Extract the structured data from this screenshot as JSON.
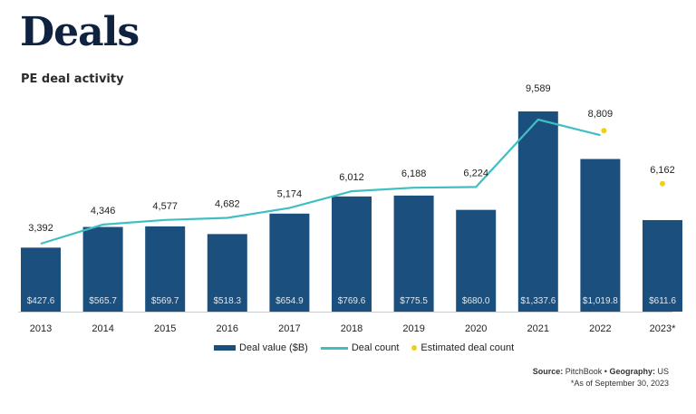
{
  "header": {
    "title": "Deals",
    "subtitle": "PE deal activity"
  },
  "legend": {
    "bar": "Deal value ($B)",
    "line": "Deal count",
    "dot": "Estimated deal count"
  },
  "footer": {
    "source_label": "Source:",
    "source_value": "PitchBook",
    "separator": "•",
    "geo_label": "Geography:",
    "geo_value": "US",
    "note": "*As of September 30, 2023"
  },
  "colors": {
    "bar": "#1b4f7e",
    "line": "#3fbfc4",
    "dot": "#f0cf1c",
    "axis": "#c8cdd3"
  },
  "chart_data": {
    "type": "bar",
    "title": "PE deal activity",
    "xlabel": "",
    "ylabel": "",
    "categories": [
      "2013",
      "2014",
      "2015",
      "2016",
      "2017",
      "2018",
      "2019",
      "2020",
      "2021",
      "2022",
      "2023*"
    ],
    "series": [
      {
        "name": "Deal value ($B)",
        "type": "bar",
        "values": [
          427.6,
          565.7,
          569.7,
          518.3,
          654.9,
          769.6,
          775.5,
          680.0,
          1337.6,
          1019.8,
          611.6
        ],
        "labels": [
          "$427.6",
          "$565.7",
          "$569.7",
          "$518.3",
          "$654.9",
          "$769.6",
          "$775.5",
          "$680.0",
          "$1,337.6",
          "$1,019.8",
          "$611.6"
        ]
      },
      {
        "name": "Deal count",
        "type": "line",
        "values": [
          3392,
          4346,
          4577,
          4682,
          5174,
          6012,
          6188,
          6224,
          9589,
          8809,
          null
        ],
        "labels": [
          "3,392",
          "4,346",
          "4,577",
          "4,682",
          "5,174",
          "6,012",
          "6,188",
          "6,224",
          "9,589",
          "8,809",
          ""
        ]
      },
      {
        "name": "Estimated deal count",
        "type": "scatter",
        "values": [
          null,
          null,
          null,
          null,
          null,
          null,
          null,
          null,
          null,
          8809,
          6162
        ],
        "labels": [
          "",
          "",
          "",
          "",
          "",
          "",
          "",
          "",
          "",
          "",
          "6,162"
        ]
      }
    ],
    "grid": false,
    "legend_position": "bottom"
  }
}
